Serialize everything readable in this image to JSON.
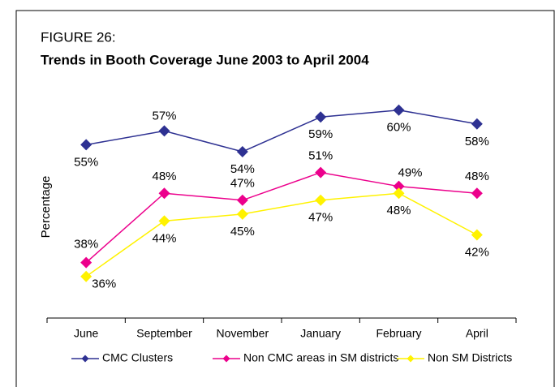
{
  "chart_data": {
    "type": "line",
    "label": "FIGURE 26:",
    "title": "Trends in Booth Coverage June 2003 to April 2004",
    "y_label": "Percentage",
    "categories": [
      "June",
      "September",
      "November",
      "January",
      "February",
      "April"
    ],
    "ylim": [
      30,
      65
    ],
    "series": [
      {
        "name": "CMC Clusters",
        "color": "#2e3192",
        "values": [
          55,
          57,
          54,
          59,
          60,
          58
        ],
        "value_labels": [
          "55%",
          "57%",
          "54%",
          "59%",
          "60%",
          "58%"
        ]
      },
      {
        "name": "Non CMC areas in SM districts",
        "color": "#ec008c",
        "values": [
          38,
          48,
          47,
          51,
          49,
          48
        ],
        "value_labels": [
          "38%",
          "48%",
          "47%",
          "51%",
          "49%",
          "48%"
        ]
      },
      {
        "name": "Non SM Districts",
        "color": "#fff200",
        "values": [
          36,
          44,
          45,
          47,
          48,
          42
        ],
        "value_labels": [
          "36%",
          "44%",
          "45%",
          "47%",
          "48%",
          "42%"
        ]
      }
    ]
  }
}
